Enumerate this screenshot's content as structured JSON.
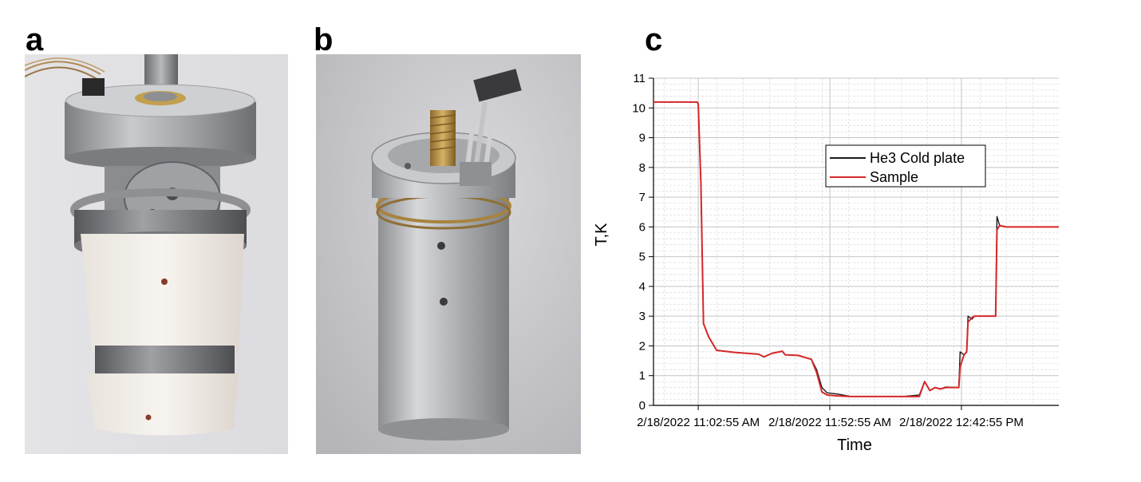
{
  "panels": {
    "a": {
      "label": "a"
    },
    "b": {
      "label": "b"
    },
    "c": {
      "label": "c"
    }
  },
  "chart_data": {
    "type": "line",
    "title": "",
    "xlabel": "Time",
    "ylabel": "T,K",
    "ylim": [
      0,
      11
    ],
    "yticks": [
      0,
      1,
      2,
      3,
      4,
      5,
      6,
      7,
      8,
      9,
      10,
      11
    ],
    "xlim": [
      "2/18/2022 10:45:55 AM",
      "2/18/2022 1:19:55 PM"
    ],
    "xtick_labels": [
      "2/18/2022 11:02:55 AM",
      "2/18/2022 11:52:55 AM",
      "2/18/2022 12:42:55 PM"
    ],
    "grid": true,
    "legend_position": "upper-center",
    "series": [
      {
        "name": "He3 Cold plate",
        "color": "#1a1a1a",
        "points": [
          [
            "2/18/2022 10:45:55 AM",
            10.2
          ],
          [
            "2/18/2022 11:02:25 AM",
            10.2
          ],
          [
            "2/18/2022 11:02:55 AM",
            10.15
          ],
          [
            "2/18/2022 11:03:55 AM",
            7.5
          ],
          [
            "2/18/2022 11:04:55 AM",
            2.75
          ],
          [
            "2/18/2022 11:06:55 AM",
            2.3
          ],
          [
            "2/18/2022 11:09:55 AM",
            1.85
          ],
          [
            "2/18/2022 11:16:55 AM",
            1.78
          ],
          [
            "2/18/2022 11:25:55 AM",
            1.72
          ],
          [
            "2/18/2022 11:27:55 AM",
            1.63
          ],
          [
            "2/18/2022 11:30:55 AM",
            1.75
          ],
          [
            "2/18/2022 11:34:55 AM",
            1.82
          ],
          [
            "2/18/2022 11:35:55 AM",
            1.7
          ],
          [
            "2/18/2022 11:40:55 AM",
            1.68
          ],
          [
            "2/18/2022 11:45:55 AM",
            1.55
          ],
          [
            "2/18/2022 11:47:55 AM",
            1.2
          ],
          [
            "2/18/2022 11:49:55 AM",
            0.6
          ],
          [
            "2/18/2022 11:51:55 AM",
            0.42
          ],
          [
            "2/18/2022 11:55:55 AM",
            0.38
          ],
          [
            "2/18/2022 12:00:55 PM",
            0.3
          ],
          [
            "2/18/2022 12:20:55 PM",
            0.3
          ],
          [
            "2/18/2022 12:26:55 PM",
            0.35
          ],
          [
            "2/18/2022 12:28:55 PM",
            0.8
          ],
          [
            "2/18/2022 12:30:55 PM",
            0.5
          ],
          [
            "2/18/2022 12:32:55 PM",
            0.6
          ],
          [
            "2/18/2022 12:34:55 PM",
            0.55
          ],
          [
            "2/18/2022 12:36:55 PM",
            0.62
          ],
          [
            "2/18/2022 12:41:55 PM",
            0.6
          ],
          [
            "2/18/2022 12:42:25 PM",
            1.8
          ],
          [
            "2/18/2022 12:43:55 PM",
            1.7
          ],
          [
            "2/18/2022 12:44:55 PM",
            1.8
          ],
          [
            "2/18/2022 12:45:25 PM",
            3.0
          ],
          [
            "2/18/2022 12:46:55 PM",
            2.9
          ],
          [
            "2/18/2022 12:47:55 PM",
            3.0
          ],
          [
            "2/18/2022 12:55:55 PM",
            3.0
          ],
          [
            "2/18/2022 12:56:25 PM",
            6.35
          ],
          [
            "2/18/2022 12:57:25 PM",
            6.05
          ],
          [
            "2/18/2022 12:59:55 PM",
            6.0
          ],
          [
            "2/18/2022 1:19:55 PM",
            6.0
          ]
        ]
      },
      {
        "name": "Sample",
        "color": "#d62728",
        "points": [
          [
            "2/18/2022 10:45:55 AM",
            10.2
          ],
          [
            "2/18/2022 11:02:25 AM",
            10.2
          ],
          [
            "2/18/2022 11:02:55 AM",
            10.15
          ],
          [
            "2/18/2022 11:03:55 AM",
            7.5
          ],
          [
            "2/18/2022 11:04:55 AM",
            2.75
          ],
          [
            "2/18/2022 11:06:55 AM",
            2.3
          ],
          [
            "2/18/2022 11:09:55 AM",
            1.85
          ],
          [
            "2/18/2022 11:16:55 AM",
            1.78
          ],
          [
            "2/18/2022 11:25:55 AM",
            1.72
          ],
          [
            "2/18/2022 11:27:55 AM",
            1.63
          ],
          [
            "2/18/2022 11:30:55 AM",
            1.75
          ],
          [
            "2/18/2022 11:34:55 AM",
            1.82
          ],
          [
            "2/18/2022 11:35:55 AM",
            1.7
          ],
          [
            "2/18/2022 11:40:55 AM",
            1.68
          ],
          [
            "2/18/2022 11:45:55 AM",
            1.55
          ],
          [
            "2/18/2022 11:47:55 AM",
            1.1
          ],
          [
            "2/18/2022 11:49:55 AM",
            0.45
          ],
          [
            "2/18/2022 11:51:55 AM",
            0.35
          ],
          [
            "2/18/2022 11:55:55 AM",
            0.32
          ],
          [
            "2/18/2022 12:00:55 PM",
            0.3
          ],
          [
            "2/18/2022 12:20:55 PM",
            0.3
          ],
          [
            "2/18/2022 12:26:55 PM",
            0.3
          ],
          [
            "2/18/2022 12:28:55 PM",
            0.8
          ],
          [
            "2/18/2022 12:30:55 PM",
            0.5
          ],
          [
            "2/18/2022 12:32:55 PM",
            0.6
          ],
          [
            "2/18/2022 12:34:55 PM",
            0.55
          ],
          [
            "2/18/2022 12:36:55 PM",
            0.6
          ],
          [
            "2/18/2022 12:41:55 PM",
            0.6
          ],
          [
            "2/18/2022 12:42:25 PM",
            1.3
          ],
          [
            "2/18/2022 12:43:55 PM",
            1.7
          ],
          [
            "2/18/2022 12:44:55 PM",
            1.8
          ],
          [
            "2/18/2022 12:45:25 PM",
            2.8
          ],
          [
            "2/18/2022 12:46:55 PM",
            2.95
          ],
          [
            "2/18/2022 12:47:55 PM",
            3.0
          ],
          [
            "2/18/2022 12:55:55 PM",
            3.0
          ],
          [
            "2/18/2022 12:56:25 PM",
            5.9
          ],
          [
            "2/18/2022 12:57:25 PM",
            6.05
          ],
          [
            "2/18/2022 12:59:55 PM",
            6.0
          ],
          [
            "2/18/2022 1:19:55 PM",
            6.0
          ]
        ]
      }
    ]
  }
}
